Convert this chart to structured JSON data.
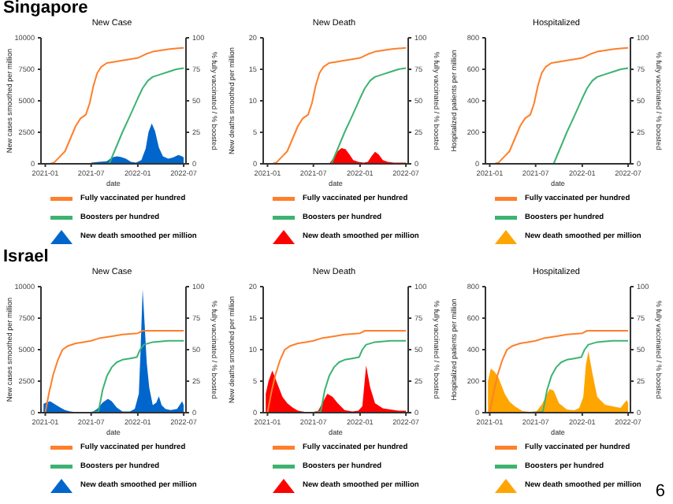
{
  "chart_data": [
    {
      "type": "line",
      "title": "New Case",
      "xlabel": "date",
      "ylabel": "New cases smoothed per million",
      "y2label": "% fully vaccinated / % boosted",
      "annotations": [
        "Singapore"
      ],
      "legend": "bottom",
      "xlim": [
        "2020-12-15",
        "2022-07-10"
      ],
      "xticks": [
        "2021-01",
        "2021-07",
        "2022-01",
        "2022-07"
      ],
      "ylim": [
        0,
        10000
      ],
      "yticks": [
        0,
        2500,
        5000,
        7500,
        10000
      ],
      "y2lim": [
        0,
        100
      ],
      "y2ticks": [
        0,
        25,
        50,
        75,
        100
      ],
      "series": [
        {
          "name": "Fully vaccinated per hundred",
          "color": "#ff7f2a",
          "axis": "y2",
          "x": [
            "2021-01-01",
            "2021-01-20",
            "2021-02-05",
            "2021-03-01",
            "2021-03-20",
            "2021-04-10",
            "2021-05-01",
            "2021-05-20",
            "2021-06-10",
            "2021-06-25",
            "2021-07-10",
            "2021-07-25",
            "2021-08-10",
            "2021-09-01",
            "2021-10-01",
            "2021-11-01",
            "2021-12-01",
            "2022-01-01",
            "2022-02-01",
            "2022-03-01",
            "2022-04-01",
            "2022-05-01",
            "2022-06-01",
            "2022-07-01"
          ],
          "values": [
            0,
            0,
            1,
            6,
            10,
            20,
            30,
            36,
            39,
            48,
            62,
            72,
            77,
            80,
            81,
            82,
            83,
            84,
            87,
            89,
            90,
            91,
            91.5,
            92
          ]
        },
        {
          "name": "Boosters per hundred",
          "color": "#3cb371",
          "axis": "y2",
          "x": [
            "2021-09-10",
            "2021-10-01",
            "2021-11-01",
            "2021-12-01",
            "2022-01-01",
            "2022-01-20",
            "2022-02-10",
            "2022-03-01",
            "2022-04-01",
            "2022-05-01",
            "2022-06-01",
            "2022-07-01"
          ],
          "values": [
            0,
            10,
            25,
            38,
            52,
            60,
            66,
            69,
            71,
            73,
            75,
            76
          ]
        },
        {
          "name": "New death smoothed per million",
          "type": "area",
          "color": "#0066cc",
          "x": [
            "2021-07-01",
            "2021-08-01",
            "2021-09-01",
            "2021-09-20",
            "2021-10-10",
            "2021-10-25",
            "2021-11-15",
            "2021-12-05",
            "2021-12-25",
            "2022-01-15",
            "2022-02-01",
            "2022-02-12",
            "2022-02-25",
            "2022-03-10",
            "2022-03-25",
            "2022-04-10",
            "2022-05-01",
            "2022-05-20",
            "2022-06-10",
            "2022-06-25",
            "2022-07-01"
          ],
          "values": [
            100,
            150,
            200,
            500,
            600,
            550,
            400,
            150,
            100,
            300,
            1200,
            2500,
            3200,
            2600,
            1300,
            600,
            400,
            500,
            700,
            600,
            500
          ]
        }
      ]
    },
    {
      "type": "line",
      "title": "New Death",
      "xlabel": "date",
      "ylabel": "New deaths smoothed per million",
      "y2label": "% fully vaccinated / % boosted",
      "legend": "bottom",
      "xlim": [
        "2020-12-15",
        "2022-07-10"
      ],
      "xticks": [
        "2021-01",
        "2021-07",
        "2022-01",
        "2022-07"
      ],
      "ylim": [
        0,
        20
      ],
      "yticks": [
        0,
        5,
        10,
        15,
        20
      ],
      "y2lim": [
        0,
        100
      ],
      "y2ticks": [
        0,
        25,
        50,
        75,
        100
      ],
      "series": [
        {
          "name": "Fully vaccinated per hundred",
          "color": "#ff7f2a",
          "axis": "y2",
          "x": [
            "2021-01-01",
            "2021-01-20",
            "2021-02-05",
            "2021-03-01",
            "2021-03-20",
            "2021-04-10",
            "2021-05-01",
            "2021-05-20",
            "2021-06-10",
            "2021-06-25",
            "2021-07-10",
            "2021-07-25",
            "2021-08-10",
            "2021-09-01",
            "2021-10-01",
            "2021-11-01",
            "2021-12-01",
            "2022-01-01",
            "2022-02-01",
            "2022-03-01",
            "2022-04-01",
            "2022-05-01",
            "2022-06-01",
            "2022-07-01"
          ],
          "values": [
            0,
            0,
            1,
            6,
            10,
            20,
            30,
            36,
            39,
            48,
            62,
            72,
            77,
            80,
            81,
            82,
            83,
            84,
            87,
            89,
            90,
            91,
            91.5,
            92
          ]
        },
        {
          "name": "Boosters per hundred",
          "color": "#3cb371",
          "axis": "y2",
          "x": [
            "2021-09-10",
            "2021-10-01",
            "2021-11-01",
            "2021-12-01",
            "2022-01-01",
            "2022-01-20",
            "2022-02-10",
            "2022-03-01",
            "2022-04-01",
            "2022-05-01",
            "2022-06-01",
            "2022-07-01"
          ],
          "values": [
            0,
            10,
            25,
            38,
            52,
            60,
            66,
            69,
            71,
            73,
            75,
            76
          ]
        },
        {
          "name": "New death smoothed per million",
          "type": "area",
          "color": "#ff0000",
          "x": [
            "2021-09-01",
            "2021-09-20",
            "2021-10-05",
            "2021-10-20",
            "2021-11-05",
            "2021-11-20",
            "2021-12-05",
            "2021-12-25",
            "2022-01-15",
            "2022-02-01",
            "2022-02-15",
            "2022-03-01",
            "2022-03-15",
            "2022-04-01",
            "2022-04-20",
            "2022-05-15",
            "2022-06-10",
            "2022-07-01"
          ],
          "values": [
            0,
            1,
            2,
            2.5,
            2.3,
            1.5,
            0.6,
            0.3,
            0.2,
            0.3,
            1.2,
            1.9,
            1.5,
            0.6,
            0.3,
            0.2,
            0.2,
            0.2
          ]
        }
      ]
    },
    {
      "type": "line",
      "title": "Hospitalized",
      "xlabel": "date",
      "ylabel": "Hospitalized patients per million",
      "y2label": "% fully vaccinated / % boosted",
      "legend": "bottom",
      "xlim": [
        "2020-12-15",
        "2022-07-10"
      ],
      "xticks": [
        "2021-01",
        "2021-07",
        "2022-01",
        "2022-07"
      ],
      "ylim": [
        0,
        800
      ],
      "yticks": [
        0,
        200,
        400,
        600,
        800
      ],
      "y2lim": [
        0,
        100
      ],
      "y2ticks": [
        0,
        25,
        50,
        75,
        100
      ],
      "series": [
        {
          "name": "Fully vaccinated per hundred",
          "color": "#ff7f2a",
          "axis": "y2",
          "x": [
            "2021-01-01",
            "2021-01-20",
            "2021-02-05",
            "2021-03-01",
            "2021-03-20",
            "2021-04-10",
            "2021-05-01",
            "2021-05-20",
            "2021-06-10",
            "2021-06-25",
            "2021-07-10",
            "2021-07-25",
            "2021-08-10",
            "2021-09-01",
            "2021-10-01",
            "2021-11-01",
            "2021-12-01",
            "2022-01-01",
            "2022-02-01",
            "2022-03-01",
            "2022-04-01",
            "2022-05-01",
            "2022-06-01",
            "2022-07-01"
          ],
          "values": [
            0,
            0,
            1,
            6,
            10,
            20,
            30,
            36,
            39,
            48,
            62,
            72,
            77,
            80,
            81,
            82,
            83,
            84,
            87,
            89,
            90,
            91,
            91.5,
            92
          ]
        },
        {
          "name": "Boosters per hundred",
          "color": "#3cb371",
          "axis": "y2",
          "x": [
            "2021-09-10",
            "2021-10-01",
            "2021-11-01",
            "2021-12-01",
            "2022-01-01",
            "2022-01-20",
            "2022-02-10",
            "2022-03-01",
            "2022-04-01",
            "2022-05-01",
            "2022-06-01",
            "2022-07-01"
          ],
          "values": [
            0,
            10,
            25,
            38,
            52,
            60,
            66,
            69,
            71,
            73,
            75,
            76
          ]
        },
        {
          "name": "New death smoothed per million",
          "type": "area",
          "color": "#ffa500"
        }
      ]
    },
    {
      "type": "line",
      "title": "New Case",
      "xlabel": "date",
      "ylabel": "New cases smoothed per million",
      "y2label": "% fully vaccinated / % boosted",
      "annotations": [
        "Israel"
      ],
      "legend": "bottom",
      "xlim": [
        "2020-12-15",
        "2022-07-10"
      ],
      "xticks": [
        "2021-01",
        "2021-07",
        "2022-01",
        "2022-07"
      ],
      "ylim": [
        0,
        10000
      ],
      "yticks": [
        0,
        2500,
        5000,
        7500,
        10000
      ],
      "y2lim": [
        0,
        100
      ],
      "y2ticks": [
        0,
        25,
        50,
        75,
        100
      ],
      "series": [
        {
          "name": "Fully vaccinated per hundred",
          "color": "#ff7f2a",
          "axis": "y2",
          "x": [
            "2021-01-01",
            "2021-01-15",
            "2021-02-01",
            "2021-02-20",
            "2021-03-10",
            "2021-04-01",
            "2021-05-01",
            "2021-06-01",
            "2021-07-01",
            "2021-08-01",
            "2021-09-01",
            "2021-10-01",
            "2021-11-01",
            "2021-12-01",
            "2022-01-01",
            "2022-01-20",
            "2022-03-01",
            "2022-05-01",
            "2022-07-01"
          ],
          "values": [
            0,
            15,
            30,
            42,
            50,
            53,
            55,
            56,
            57,
            59,
            60,
            61,
            62,
            62.5,
            63,
            65,
            65,
            65,
            65
          ]
        },
        {
          "name": "Boosters per hundred",
          "color": "#3cb371",
          "axis": "y2",
          "x": [
            "2021-07-01",
            "2021-07-30",
            "2021-08-15",
            "2021-09-01",
            "2021-09-20",
            "2021-10-10",
            "2021-11-01",
            "2021-12-01",
            "2021-12-28",
            "2022-01-10",
            "2022-01-25",
            "2022-03-01",
            "2022-05-01",
            "2022-07-01"
          ],
          "values": [
            0,
            1,
            18,
            29,
            36,
            40,
            42,
            43,
            44,
            50,
            54,
            56,
            57,
            57
          ]
        },
        {
          "name": "New death smoothed per million",
          "type": "area",
          "color": "#0066cc",
          "x": [
            "2020-12-25",
            "2021-01-05",
            "2021-01-20",
            "2021-02-05",
            "2021-03-01",
            "2021-03-20",
            "2021-04-10",
            "2021-05-10",
            "2021-06-15",
            "2021-07-05",
            "2021-07-25",
            "2021-08-15",
            "2021-09-05",
            "2021-09-20",
            "2021-10-10",
            "2021-11-01",
            "2021-12-01",
            "2021-12-20",
            "2022-01-05",
            "2022-01-12",
            "2022-01-20",
            "2022-01-28",
            "2022-02-05",
            "2022-02-15",
            "2022-03-01",
            "2022-03-15",
            "2022-03-25",
            "2022-04-05",
            "2022-04-20",
            "2022-05-10",
            "2022-06-05",
            "2022-06-25",
            "2022-07-01"
          ],
          "values": [
            700,
            800,
            900,
            700,
            400,
            200,
            100,
            20,
            10,
            50,
            300,
            800,
            1100,
            900,
            400,
            100,
            100,
            300,
            1500,
            5000,
            9800,
            7000,
            4000,
            2000,
            600,
            800,
            1300,
            600,
            300,
            200,
            300,
            900,
            600
          ]
        }
      ]
    },
    {
      "type": "line",
      "title": "New Death",
      "xlabel": "date",
      "ylabel": "New deaths smoothed per million",
      "y2label": "% fully vaccinated / % boosted",
      "legend": "bottom",
      "xlim": [
        "2020-12-15",
        "2022-07-10"
      ],
      "xticks": [
        "2021-01",
        "2021-07",
        "2022-01",
        "2022-07"
      ],
      "ylim": [
        0,
        20
      ],
      "yticks": [
        0,
        5,
        10,
        15,
        20
      ],
      "y2lim": [
        0,
        100
      ],
      "y2ticks": [
        0,
        25,
        50,
        75,
        100
      ],
      "series": [
        {
          "name": "Fully vaccinated per hundred",
          "color": "#ff7f2a",
          "axis": "y2",
          "x": [
            "2021-01-01",
            "2021-01-15",
            "2021-02-01",
            "2021-02-20",
            "2021-03-10",
            "2021-04-01",
            "2021-05-01",
            "2021-06-01",
            "2021-07-01",
            "2021-08-01",
            "2021-09-01",
            "2021-10-01",
            "2021-11-01",
            "2021-12-01",
            "2022-01-01",
            "2022-01-20",
            "2022-03-01",
            "2022-05-01",
            "2022-07-01"
          ],
          "values": [
            0,
            15,
            30,
            42,
            50,
            53,
            55,
            56,
            57,
            59,
            60,
            61,
            62,
            62.5,
            63,
            65,
            65,
            65,
            65
          ]
        },
        {
          "name": "Boosters per hundred",
          "color": "#3cb371",
          "axis": "y2",
          "x": [
            "2021-07-01",
            "2021-07-30",
            "2021-08-15",
            "2021-09-01",
            "2021-09-20",
            "2021-10-10",
            "2021-11-01",
            "2021-12-01",
            "2021-12-28",
            "2022-01-10",
            "2022-01-25",
            "2022-03-01",
            "2022-05-01",
            "2022-07-01"
          ],
          "values": [
            0,
            1,
            18,
            29,
            36,
            40,
            42,
            43,
            44,
            50,
            54,
            56,
            57,
            57
          ]
        },
        {
          "name": "New death smoothed per million",
          "type": "area",
          "color": "#ff0000",
          "x": [
            "2020-12-25",
            "2021-01-05",
            "2021-01-20",
            "2021-02-05",
            "2021-03-01",
            "2021-03-20",
            "2021-04-10",
            "2021-05-01",
            "2021-06-01",
            "2021-07-01",
            "2021-07-20",
            "2021-08-05",
            "2021-08-25",
            "2021-09-15",
            "2021-10-05",
            "2021-11-01",
            "2021-12-01",
            "2021-12-25",
            "2022-01-10",
            "2022-01-25",
            "2022-02-10",
            "2022-03-01",
            "2022-04-01",
            "2022-05-01",
            "2022-06-01",
            "2022-07-01"
          ],
          "values": [
            3,
            5,
            6.7,
            5,
            2.5,
            1.5,
            0.8,
            0.3,
            0.1,
            0.1,
            0.3,
            1.5,
            3,
            2.5,
            1.5,
            0.4,
            0.2,
            0.3,
            1,
            7.5,
            4,
            1.5,
            0.7,
            0.5,
            0.3,
            0.3
          ]
        }
      ]
    },
    {
      "type": "line",
      "title": "Hospitalized",
      "xlabel": "date",
      "ylabel": "Hospitalized patients per million",
      "y2label": "% fully vaccinated / % boosted",
      "annotations": [
        "6"
      ],
      "legend": "bottom",
      "xlim": [
        "2020-12-15",
        "2022-07-10"
      ],
      "xticks": [
        "2021-01",
        "2021-07",
        "2022-01",
        "2022-07"
      ],
      "ylim": [
        0,
        800
      ],
      "yticks": [
        0,
        200,
        400,
        600,
        800
      ],
      "y2lim": [
        0,
        100
      ],
      "y2ticks": [
        0,
        25,
        50,
        75,
        100
      ],
      "series": [
        {
          "name": "Fully vaccinated per hundred",
          "color": "#ff7f2a",
          "axis": "y2",
          "x": [
            "2021-01-01",
            "2021-01-15",
            "2021-02-01",
            "2021-02-20",
            "2021-03-10",
            "2021-04-01",
            "2021-05-01",
            "2021-06-01",
            "2021-07-01",
            "2021-08-01",
            "2021-09-01",
            "2021-10-01",
            "2021-11-01",
            "2021-12-01",
            "2022-01-01",
            "2022-01-20",
            "2022-03-01",
            "2022-05-01",
            "2022-07-01"
          ],
          "values": [
            0,
            15,
            30,
            42,
            50,
            53,
            55,
            56,
            57,
            59,
            60,
            61,
            62,
            62.5,
            63,
            65,
            65,
            65,
            65
          ]
        },
        {
          "name": "Boosters per hundred",
          "color": "#3cb371",
          "axis": "y2",
          "x": [
            "2021-07-01",
            "2021-07-30",
            "2021-08-15",
            "2021-09-01",
            "2021-09-20",
            "2021-10-10",
            "2021-11-01",
            "2021-12-01",
            "2021-12-28",
            "2022-01-10",
            "2022-01-25",
            "2022-03-01",
            "2022-05-01",
            "2022-07-01"
          ],
          "values": [
            0,
            1,
            18,
            29,
            36,
            40,
            42,
            43,
            44,
            50,
            54,
            56,
            57,
            57
          ]
        },
        {
          "name": "New death smoothed per million",
          "type": "area",
          "color": "#ffa500",
          "x": [
            "2020-12-25",
            "2021-01-05",
            "2021-01-20",
            "2021-02-05",
            "2021-03-01",
            "2021-03-20",
            "2021-04-10",
            "2021-05-10",
            "2021-06-10",
            "2021-07-05",
            "2021-07-25",
            "2021-08-10",
            "2021-08-25",
            "2021-09-10",
            "2021-10-01",
            "2021-11-01",
            "2021-12-01",
            "2021-12-20",
            "2022-01-05",
            "2022-01-15",
            "2022-01-25",
            "2022-02-10",
            "2022-03-01",
            "2022-04-01",
            "2022-05-01",
            "2022-06-01",
            "2022-06-25",
            "2022-07-01"
          ],
          "values": [
            200,
            280,
            260,
            220,
            120,
            70,
            40,
            10,
            5,
            10,
            50,
            100,
            150,
            140,
            60,
            20,
            15,
            30,
            100,
            300,
            390,
            250,
            100,
            50,
            40,
            30,
            80,
            60
          ]
        }
      ]
    }
  ]
}
